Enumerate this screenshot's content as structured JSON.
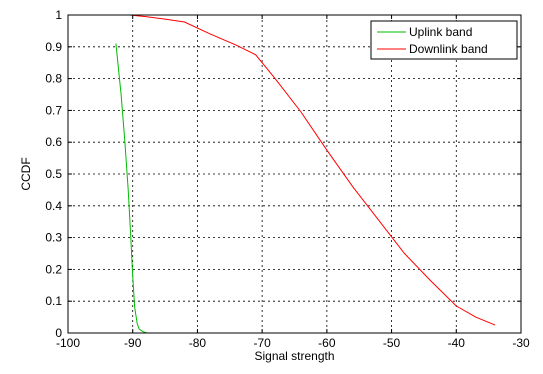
{
  "chart_data": {
    "type": "line",
    "title": "",
    "xlabel": "Signal strength",
    "ylabel": "CCDF",
    "xlim": [
      -100,
      -30
    ],
    "ylim": [
      0,
      1
    ],
    "xticks": [
      -100,
      -90,
      -80,
      -70,
      -60,
      -50,
      -40,
      -30
    ],
    "yticks": [
      0,
      0.1,
      0.2,
      0.3,
      0.4,
      0.5,
      0.6,
      0.7,
      0.8,
      0.9,
      1
    ],
    "xtick_labels": [
      "-100",
      "-90",
      "-80",
      "-70",
      "-60",
      "-50",
      "-40",
      "-30"
    ],
    "ytick_labels": [
      "0",
      "0.1",
      "0.2",
      "0.3",
      "0.4",
      "0.5",
      "0.6",
      "0.7",
      "0.8",
      "0.9",
      "1"
    ],
    "grid": true,
    "legend_position": "top-right",
    "series": [
      {
        "name": "Uplink band",
        "color": "#00bb00",
        "x": [
          -92.6,
          -91.8,
          -91.2,
          -90.7,
          -90.3,
          -90.0,
          -89.7,
          -89.3,
          -89.0,
          -88.4,
          -87.8
        ],
        "y": [
          0.91,
          0.75,
          0.6,
          0.45,
          0.3,
          0.18,
          0.08,
          0.03,
          0.012,
          0.004,
          0.0
        ]
      },
      {
        "name": "Downlink band",
        "color": "#ff0000",
        "x": [
          -90.5,
          -88,
          -85,
          -82,
          -78,
          -74,
          -71,
          -68,
          -64,
          -60,
          -56,
          -52,
          -48,
          -44,
          -40,
          -37,
          -34
        ],
        "y": [
          1.0,
          0.995,
          0.987,
          0.978,
          0.94,
          0.905,
          0.875,
          0.8,
          0.695,
          0.575,
          0.46,
          0.355,
          0.25,
          0.165,
          0.085,
          0.05,
          0.025
        ]
      }
    ]
  }
}
